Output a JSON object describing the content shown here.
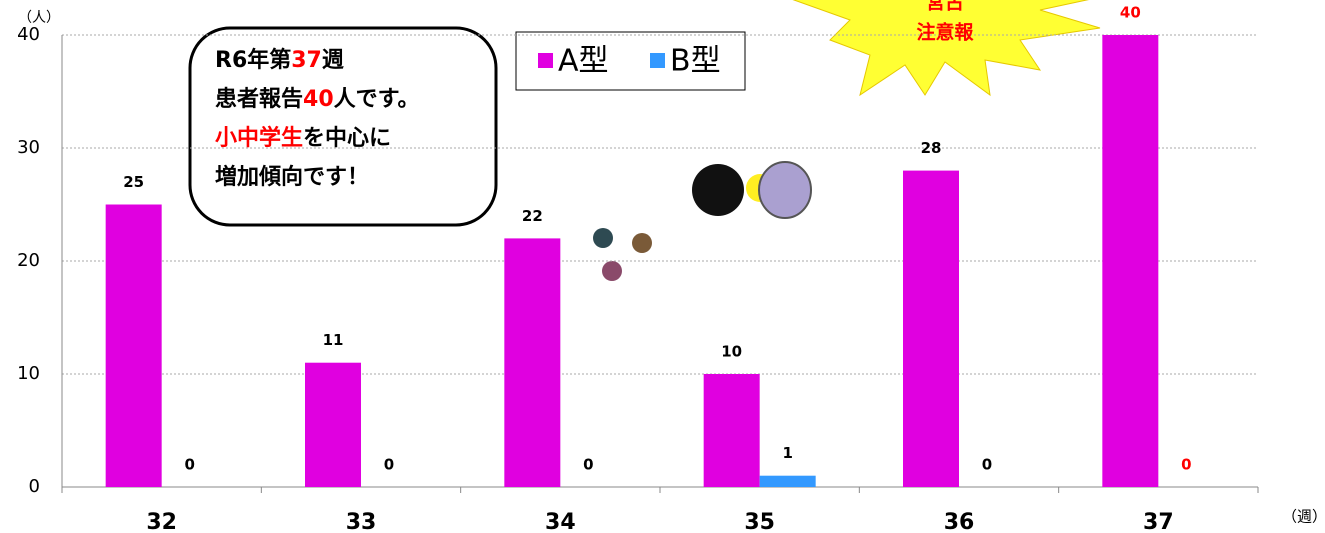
{
  "chart_data": {
    "type": "bar",
    "y_label": "（人）",
    "x_label": "（週）",
    "categories": [
      "32",
      "33",
      "34",
      "35",
      "36",
      "37"
    ],
    "series": [
      {
        "name": "A型",
        "color": "#e000e0",
        "values": [
          25,
          11,
          22,
          10,
          28,
          40
        ],
        "value_label_colors": [
          "#000000",
          "#000000",
          "#000000",
          "#000000",
          "#000000",
          "#ff0000"
        ]
      },
      {
        "name": "B型",
        "color": "#3399ff",
        "values": [
          0,
          0,
          0,
          1,
          0,
          0
        ],
        "value_label_colors": [
          "#000000",
          "#000000",
          "#000000",
          "#000000",
          "#000000",
          "#ff0000"
        ]
      }
    ],
    "ylim": [
      0,
      40
    ],
    "yticks": [
      0,
      10,
      20,
      30,
      40
    ],
    "grid": true,
    "callout": [
      [
        {
          "text": "R6年第",
          "color": "#000000"
        },
        {
          "text": "37",
          "color": "#ff0000"
        },
        {
          "text": "週",
          "color": "#000000"
        }
      ],
      [
        {
          "text": "患者報告",
          "color": "#000000"
        },
        {
          "text": "40",
          "color": "#ff0000"
        },
        {
          "text": "人です。",
          "color": "#000000"
        }
      ],
      [
        {
          "text": "小中学生",
          "color": "#ff0000"
        },
        {
          "text": "を中心に",
          "color": "#000000"
        }
      ],
      [
        {
          "text": "増加傾向です！",
          "color": "#000000"
        }
      ]
    ],
    "burst": [
      "宮古",
      "注意報"
    ],
    "burst_color": "#ff0000"
  }
}
